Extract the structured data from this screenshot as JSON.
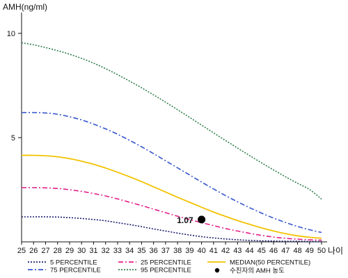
{
  "chart_data": {
    "type": "line",
    "title": "",
    "xlabel": "나이",
    "ylabel": "AMH(ng/ml)",
    "xlim": [
      25,
      50
    ],
    "ylim": [
      0,
      11
    ],
    "yticks": [
      5,
      10
    ],
    "x": [
      25,
      26,
      27,
      28,
      29,
      30,
      31,
      32,
      33,
      34,
      35,
      36,
      37,
      38,
      39,
      40,
      41,
      42,
      43,
      44,
      45,
      46,
      47,
      48,
      49,
      50
    ],
    "grid": false,
    "legend_position": "bottom",
    "series": [
      {
        "name": "5 PERCENTILE",
        "color": "#1a1a6e",
        "dash": "2,2",
        "values": [
          1.2,
          1.2,
          1.2,
          1.19,
          1.16,
          1.12,
          1.07,
          1.01,
          0.92,
          0.83,
          0.73,
          0.62,
          0.52,
          0.42,
          0.33,
          0.25,
          0.19,
          0.14,
          0.1,
          0.07,
          0.05,
          0.04,
          0.03,
          0.03,
          0.02,
          0.02
        ]
      },
      {
        "name": "25 PERCENTILE",
        "color": "#e0208a",
        "dash": "7,3,2,3",
        "values": [
          2.6,
          2.6,
          2.59,
          2.56,
          2.5,
          2.42,
          2.32,
          2.2,
          2.06,
          1.9,
          1.74,
          1.57,
          1.4,
          1.23,
          1.07,
          0.92,
          0.78,
          0.64,
          0.52,
          0.41,
          0.31,
          0.23,
          0.17,
          0.13,
          0.1,
          0.08
        ]
      },
      {
        "name": "MEDIAN(50 PERCENTILE)",
        "color": "#f2c200",
        "dash": "",
        "values": [
          4.15,
          4.15,
          4.13,
          4.08,
          3.99,
          3.87,
          3.72,
          3.54,
          3.34,
          3.12,
          2.89,
          2.64,
          2.39,
          2.14,
          1.9,
          1.66,
          1.43,
          1.22,
          1.02,
          0.84,
          0.67,
          0.52,
          0.39,
          0.29,
          0.22,
          0.17
        ]
      },
      {
        "name": "75 PERCENTILE",
        "color": "#3355cc",
        "dash": "7,3,2,3",
        "values": [
          6.2,
          6.2,
          6.18,
          6.12,
          6.0,
          5.85,
          5.65,
          5.42,
          5.16,
          4.87,
          4.56,
          4.23,
          3.89,
          3.55,
          3.21,
          2.87,
          2.54,
          2.22,
          1.92,
          1.64,
          1.38,
          1.14,
          0.93,
          0.74,
          0.58,
          0.45
        ]
      },
      {
        "name": "95 PERCENTILE",
        "color": "#2e7d4a",
        "dash": "2,2",
        "values": [
          9.55,
          9.45,
          9.32,
          9.17,
          9.0,
          8.8,
          8.57,
          8.31,
          8.02,
          7.71,
          7.39,
          7.05,
          6.7,
          6.34,
          5.97,
          5.6,
          5.23,
          4.86,
          4.5,
          4.14,
          3.79,
          3.45,
          3.12,
          2.81,
          2.51,
          2.05
        ]
      }
    ],
    "marker": {
      "name": "수진자의 AMH 농도",
      "x": 40,
      "y": 1.07,
      "label": "1.07",
      "color": "#000000"
    }
  }
}
